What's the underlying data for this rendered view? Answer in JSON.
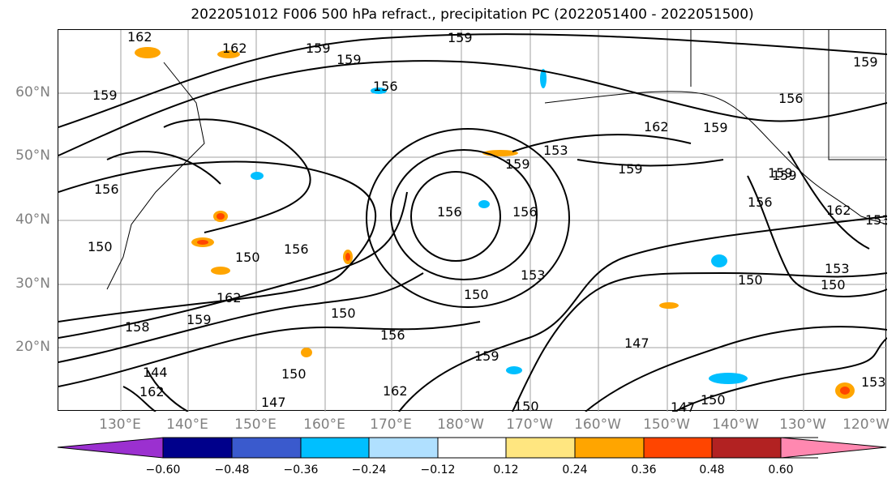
{
  "title": "2022051012 F006 500 hPa refract., precipitation PC (2022051400 - 2022051500)",
  "lat_labels": [
    "60°N",
    "50°N",
    "40°N",
    "30°N",
    "20°N"
  ],
  "lon_labels": [
    "130°E",
    "140°E",
    "150°E",
    "160°E",
    "170°E",
    "180°W",
    "170°W",
    "160°W",
    "150°W",
    "140°W",
    "130°W",
    "120°W"
  ],
  "contour_labels": [
    "162",
    "162",
    "159",
    "159",
    "156",
    "159",
    "159",
    "162",
    "159",
    "153",
    "159",
    "159",
    "159",
    "156",
    "156",
    "150",
    "156",
    "150",
    "153",
    "150",
    "162",
    "150",
    "158",
    "156",
    "159",
    "150",
    "162",
    "144",
    "162",
    "150",
    "147",
    "147",
    "150",
    "150",
    "147",
    "153",
    "159",
    "156",
    "156",
    "159",
    "159",
    "153",
    "150",
    "153",
    "162",
    "156"
  ],
  "colorbar": {
    "ticks": [
      "−0.60",
      "−0.48",
      "−0.36",
      "−0.24",
      "−0.12",
      "0.12",
      "0.24",
      "0.36",
      "0.48",
      "0.60"
    ],
    "colors": [
      "#9b30d0",
      "#00008b",
      "#3a5acd",
      "#00bfff",
      "#b0e0ff",
      "#ffffff",
      "#ffe680",
      "#ffa500",
      "#ff4500",
      "#b22222",
      "#ff88b0"
    ]
  }
}
